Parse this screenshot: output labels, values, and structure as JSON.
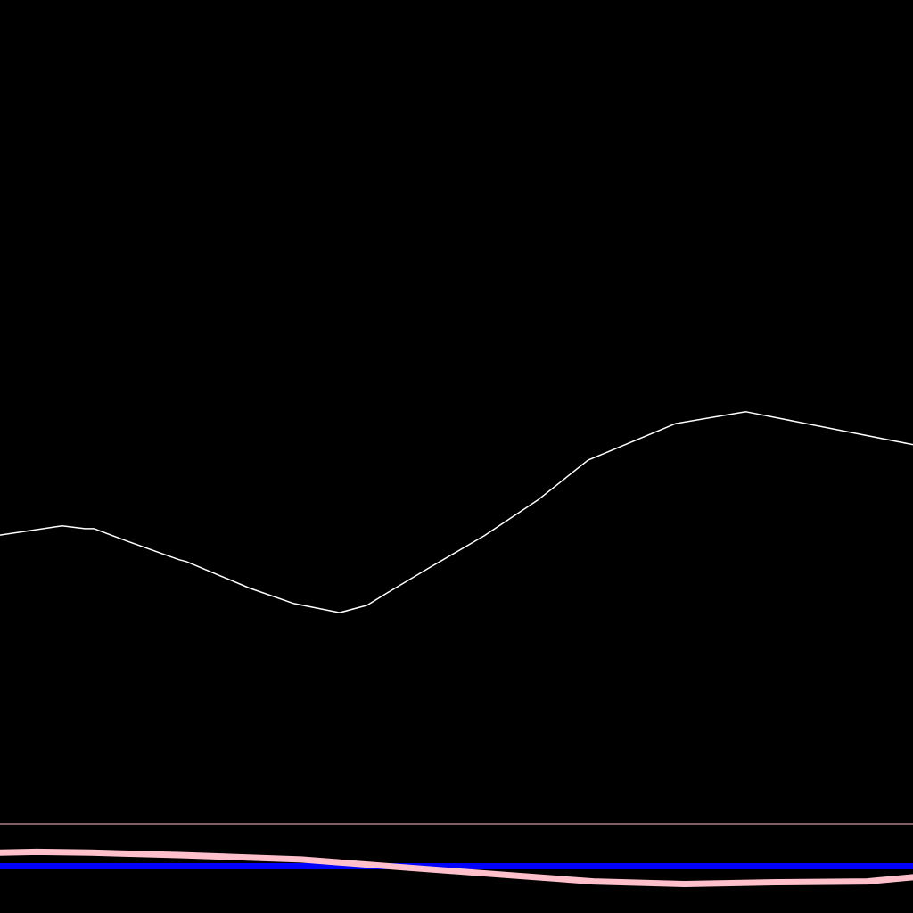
{
  "chart_data": [
    {
      "type": "line",
      "grid": false,
      "legend": "none",
      "xlim": [
        0,
        100
      ],
      "ylim": [
        0,
        100
      ],
      "series": [
        {
          "color": "#ffffff",
          "x": [
            0,
            6.8,
            9.3,
            10.3,
            14,
            19.6,
            20.4,
            27.3,
            32.2,
            37.2,
            40.2,
            42.3,
            47,
            53,
            59,
            64.4,
            74,
            81.7,
            100
          ],
          "y": [
            41.4,
            42.4,
            42.1,
            42.1,
            40.7,
            38.7,
            38.5,
            35.6,
            33.9,
            32.9,
            33.7,
            35,
            37.8,
            41.3,
            45.3,
            49.6,
            53.6,
            54.9,
            51.3
          ]
        }
      ]
    },
    {
      "type": "line",
      "grid": false,
      "legend": "none",
      "xlim": [
        0,
        100
      ],
      "ylim": [
        0,
        100
      ],
      "reference_line": {
        "y": 100,
        "color": "#ffc0cb"
      },
      "series": [
        {
          "color": "#0000ff",
          "x": [
            0,
            100
          ],
          "y": [
            50,
            50
          ]
        },
        {
          "color": "#ffc0cb",
          "x": [
            0,
            4,
            10,
            20,
            33,
            45,
            55,
            65,
            75,
            85,
            95,
            96,
            100
          ],
          "y": [
            66,
            67,
            66,
            63,
            58,
            48,
            40,
            32,
            29,
            31,
            32,
            33,
            37
          ]
        }
      ]
    }
  ]
}
